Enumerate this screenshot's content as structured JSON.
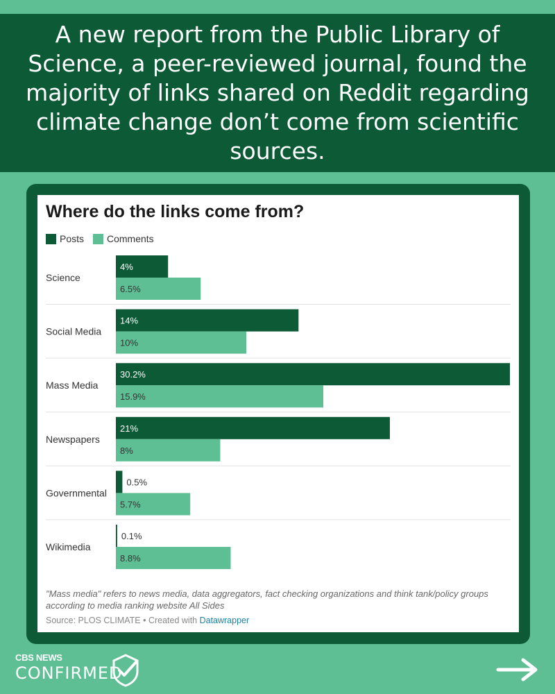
{
  "headline": "A new report from the Public Library of Science, a peer-reviewed journal, found the majority of links shared on Reddit regarding climate change don’t come from scientific sources.",
  "colors": {
    "background": "#5dbf93",
    "dark_green": "#0d5a36",
    "posts": "#0d5a36",
    "comments": "#5dbf93"
  },
  "chart_data": {
    "type": "bar",
    "orientation": "horizontal",
    "title": "Where do the links come from?",
    "categories": [
      "Science",
      "Social Media",
      "Mass Media",
      "Newspapers",
      "Governmental",
      "Wikimedia"
    ],
    "series": [
      {
        "name": "Posts",
        "values": [
          4,
          14,
          30.2,
          21,
          0.5,
          0.1
        ],
        "labels": [
          "4%",
          "14%",
          "30.2%",
          "21%",
          "0.5%",
          "0.1%"
        ]
      },
      {
        "name": "Comments",
        "values": [
          6.5,
          10,
          15.9,
          8,
          5.7,
          8.8
        ],
        "labels": [
          "6.5%",
          "10%",
          "15.9%",
          "8%",
          "5.7%",
          "8.8%"
        ]
      }
    ],
    "xlim": [
      0,
      30.2
    ],
    "legend": "top-left"
  },
  "note": "\"Mass media\" refers to news media, data aggregators, fact checking organizations and think tank/policy groups according to media ranking website All Sides",
  "source": {
    "prefix": "Source: PLOS CLIMATE • Created with ",
    "link": "Datawrapper"
  },
  "logo": {
    "top": "CBS NEWS",
    "main": "CONFIRMED"
  },
  "icons": {
    "logo_check": "checkmark-icon",
    "next": "arrow-right-icon"
  }
}
